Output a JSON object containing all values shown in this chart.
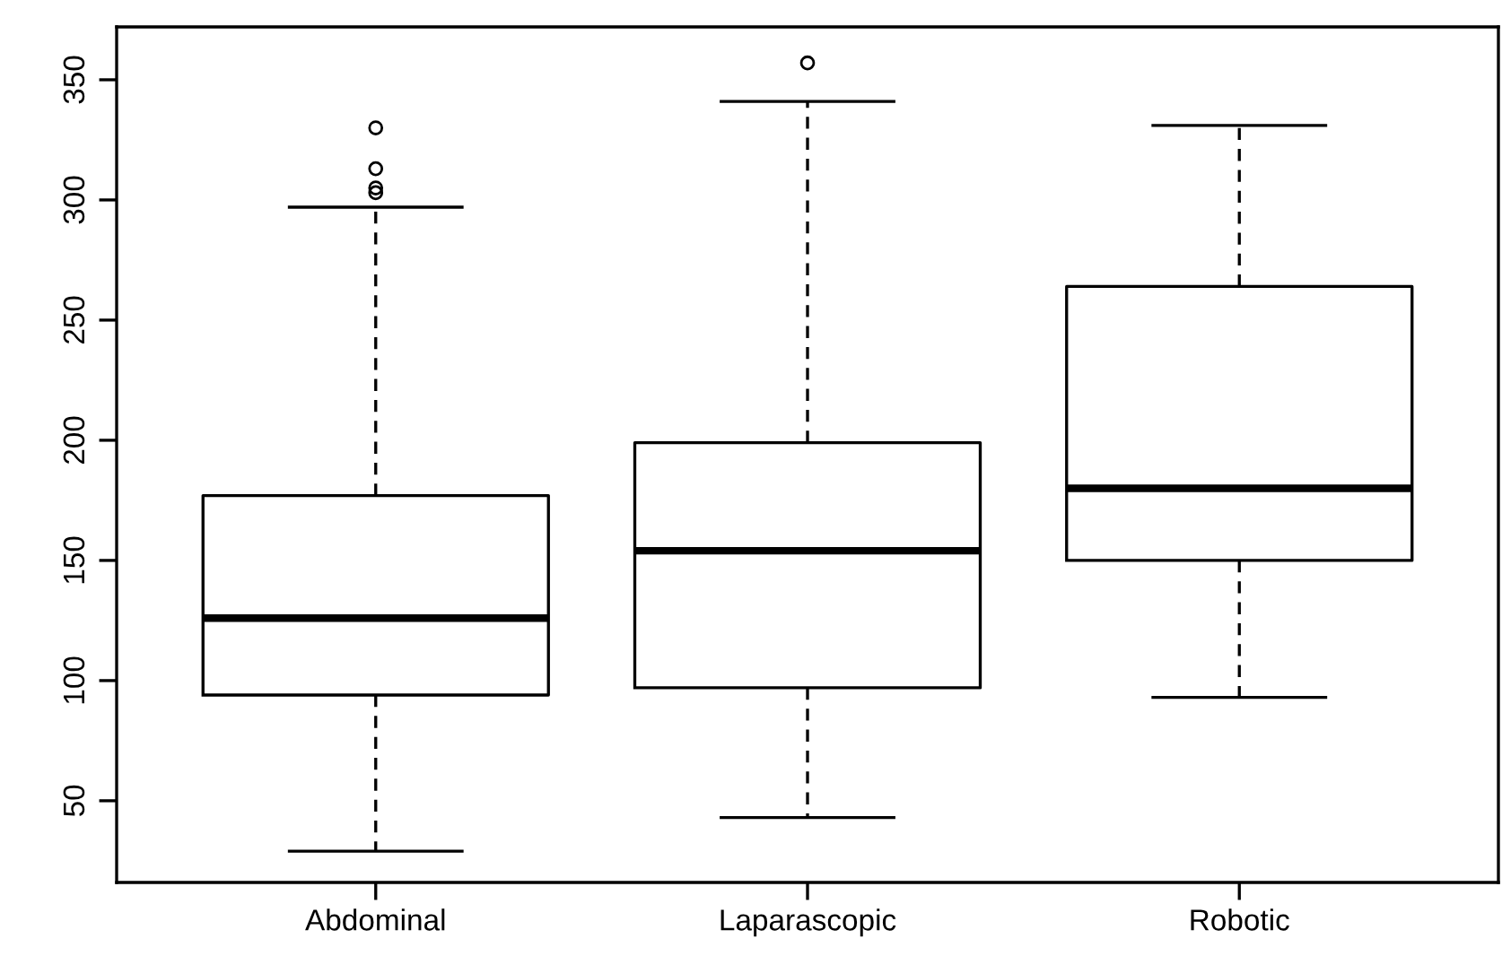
{
  "chart_data": {
    "type": "box",
    "categories": [
      "Abdominal",
      "Laparascopic",
      "Robotic"
    ],
    "boxes": [
      {
        "low": 29,
        "q1": 94,
        "median": 126,
        "q3": 177,
        "high": 297,
        "outliers": [
          330,
          313,
          305,
          303
        ]
      },
      {
        "low": 43,
        "q1": 97,
        "median": 154,
        "q3": 199,
        "high": 341,
        "outliers": [
          357
        ]
      },
      {
        "low": 93,
        "q1": 150,
        "median": 180,
        "q3": 264,
        "high": 331
      }
    ],
    "color": "#000000",
    "ylim": [
      16,
      372
    ],
    "yticks": [
      50,
      100,
      150,
      200,
      250,
      300,
      350
    ],
    "grid": false,
    "legend": false
  }
}
